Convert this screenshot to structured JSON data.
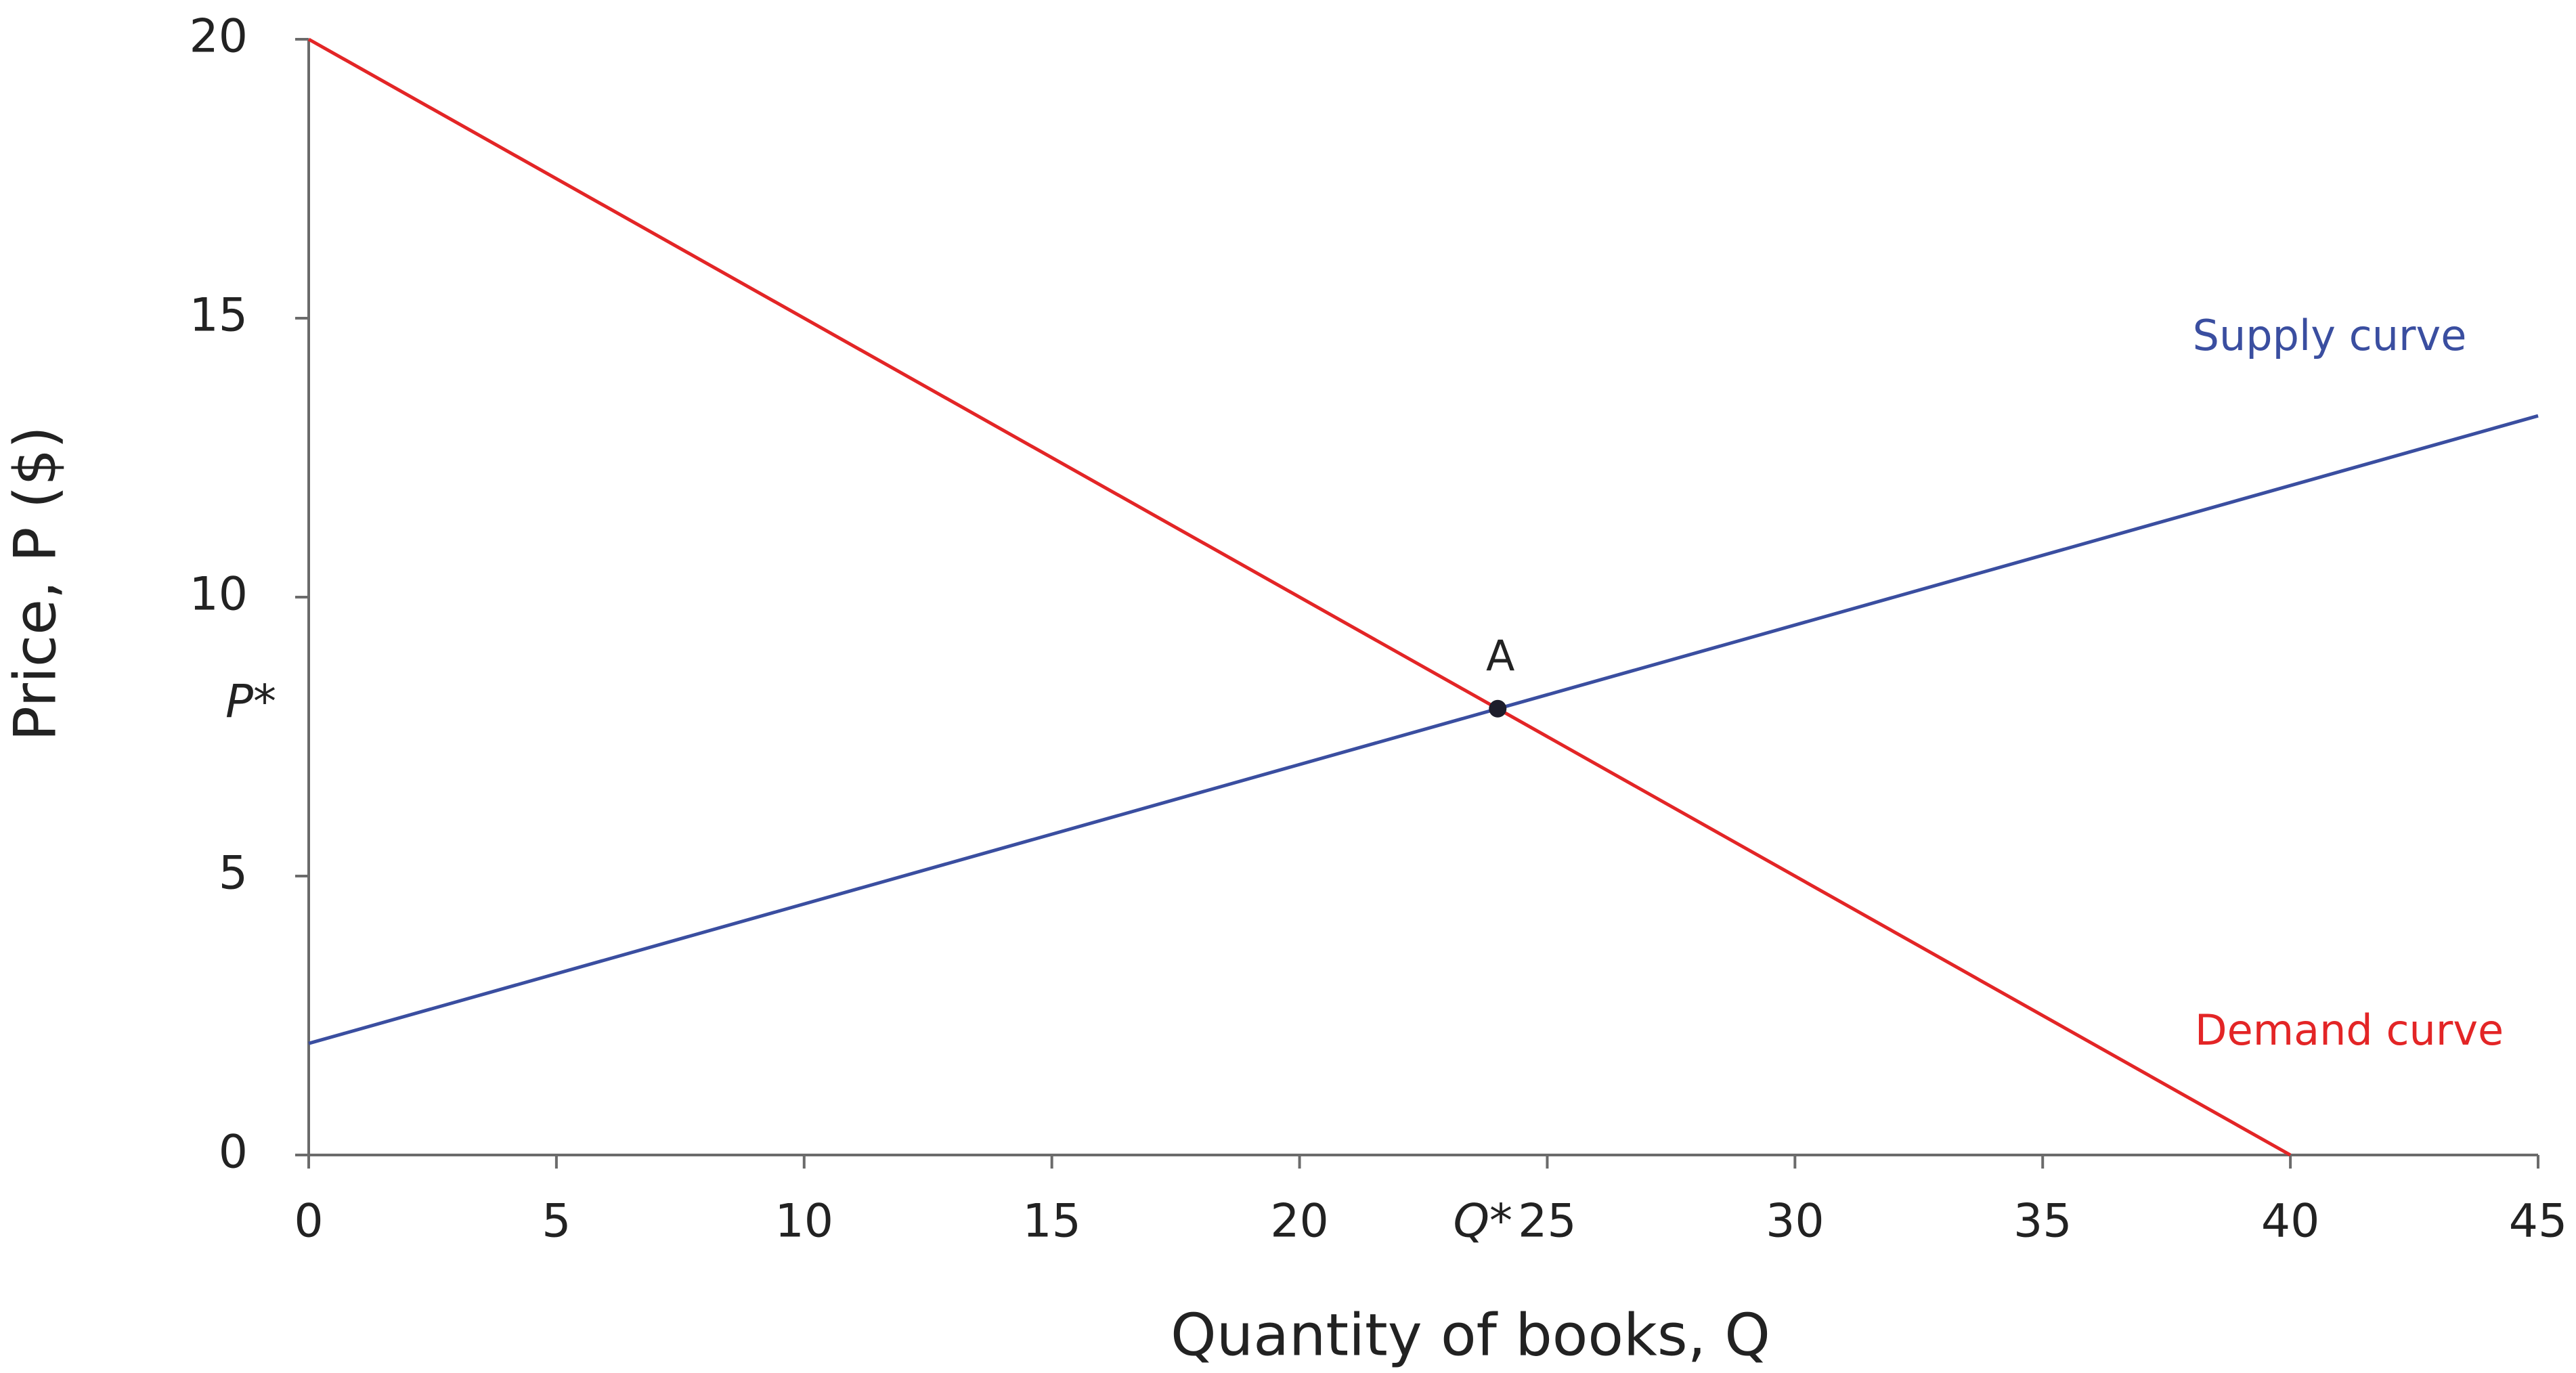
{
  "chart_data": {
    "type": "line",
    "x_label": "Quantity of books, Q",
    "y_label": "Price, P ($)",
    "series": [
      {
        "name": "Demand curve",
        "color": "#e32526",
        "x": [
          0,
          40
        ],
        "values": [
          20,
          0
        ]
      },
      {
        "name": "Supply curve",
        "color": "#3a4ea0",
        "x": [
          0,
          45
        ],
        "values": [
          2,
          13.25
        ]
      }
    ],
    "equilibrium": {
      "x": 24,
      "y": 8,
      "label": "A",
      "x_label": "Q*",
      "y_label": "P*"
    },
    "xlim": [
      0,
      45
    ],
    "ylim": [
      0,
      20
    ],
    "xticks": [
      0,
      5,
      10,
      15,
      20,
      25,
      30,
      35,
      40,
      45
    ],
    "yticks": [
      0,
      5,
      10,
      15,
      20
    ],
    "grid": false
  }
}
